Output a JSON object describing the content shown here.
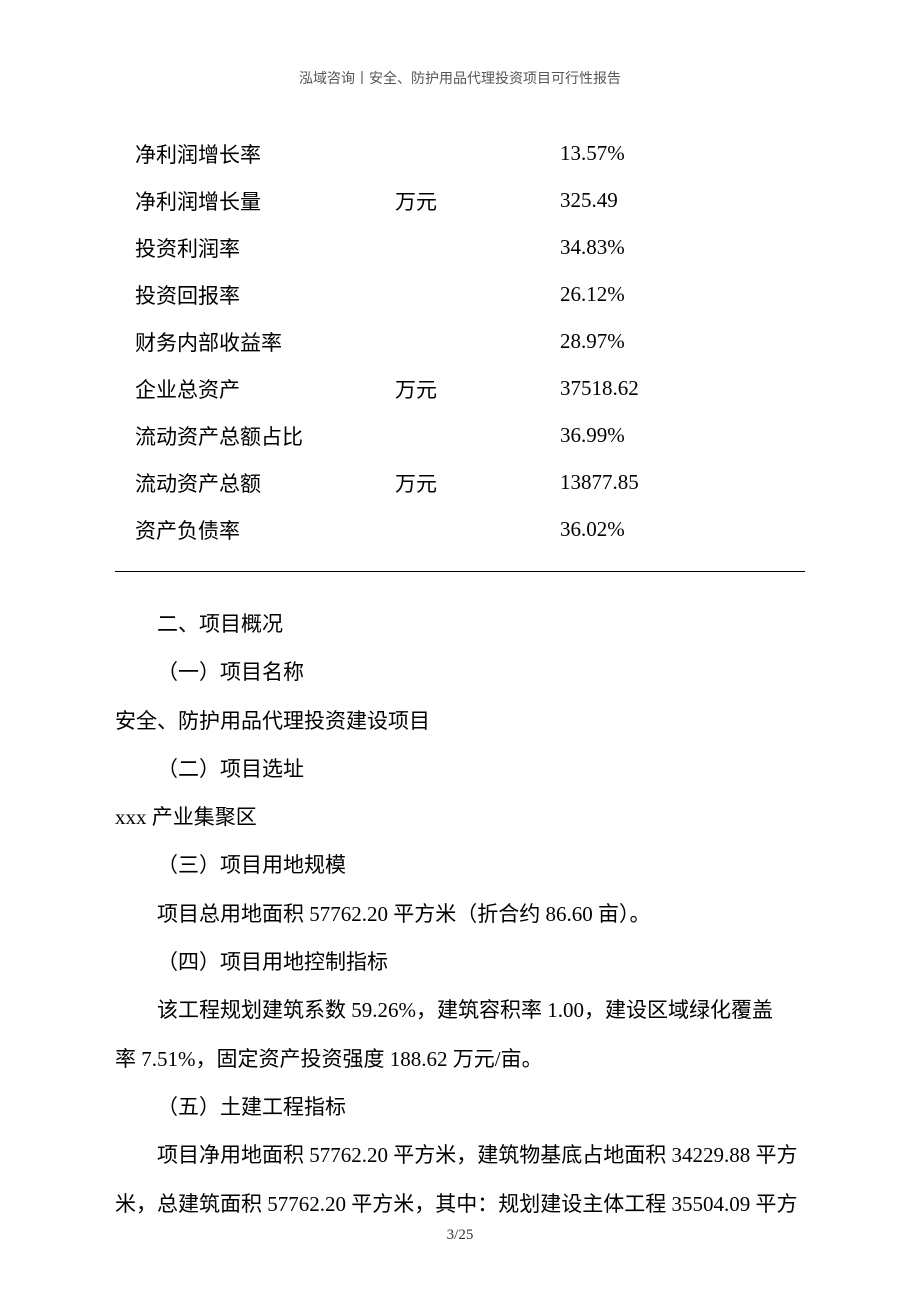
{
  "header": {
    "text": "泓域咨询丨安全、防护用品代理投资项目可行性报告"
  },
  "table": {
    "rows": [
      {
        "label": "净利润增长率",
        "unit": "",
        "value": "13.57%"
      },
      {
        "label": "净利润增长量",
        "unit": "万元",
        "value": "325.49"
      },
      {
        "label": "投资利润率",
        "unit": "",
        "value": "34.83%"
      },
      {
        "label": "投资回报率",
        "unit": "",
        "value": "26.12%"
      },
      {
        "label": "财务内部收益率",
        "unit": "",
        "value": "28.97%"
      },
      {
        "label": "企业总资产",
        "unit": "万元",
        "value": "37518.62"
      },
      {
        "label": "流动资产总额占比",
        "unit": "",
        "value": "36.99%"
      },
      {
        "label": "流动资产总额",
        "unit": "万元",
        "value": "13877.85"
      },
      {
        "label": "资产负债率",
        "unit": "",
        "value": "36.02%"
      }
    ]
  },
  "body": {
    "section_title": "二、项目概况",
    "p1_heading": "（一）项目名称",
    "p1_content": "安全、防护用品代理投资建设项目",
    "p2_heading": "（二）项目选址",
    "p2_content": "xxx 产业集聚区",
    "p3_heading": "（三）项目用地规模",
    "p3_content": "项目总用地面积 57762.20 平方米（折合约 86.60 亩）。",
    "p4_heading": "（四）项目用地控制指标",
    "p4_content_line1": "该工程规划建筑系数 59.26%，建筑容积率 1.00，建设区域绿化覆盖",
    "p4_content_line2": "率 7.51%，固定资产投资强度 188.62 万元/亩。",
    "p5_heading": "（五）土建工程指标",
    "p5_content_line1": "项目净用地面积 57762.20 平方米，建筑物基底占地面积 34229.88 平方",
    "p5_content_line2": "米，总建筑面积 57762.20 平方米，其中：规划建设主体工程 35504.09 平方"
  },
  "footer": {
    "page": "3/25"
  }
}
